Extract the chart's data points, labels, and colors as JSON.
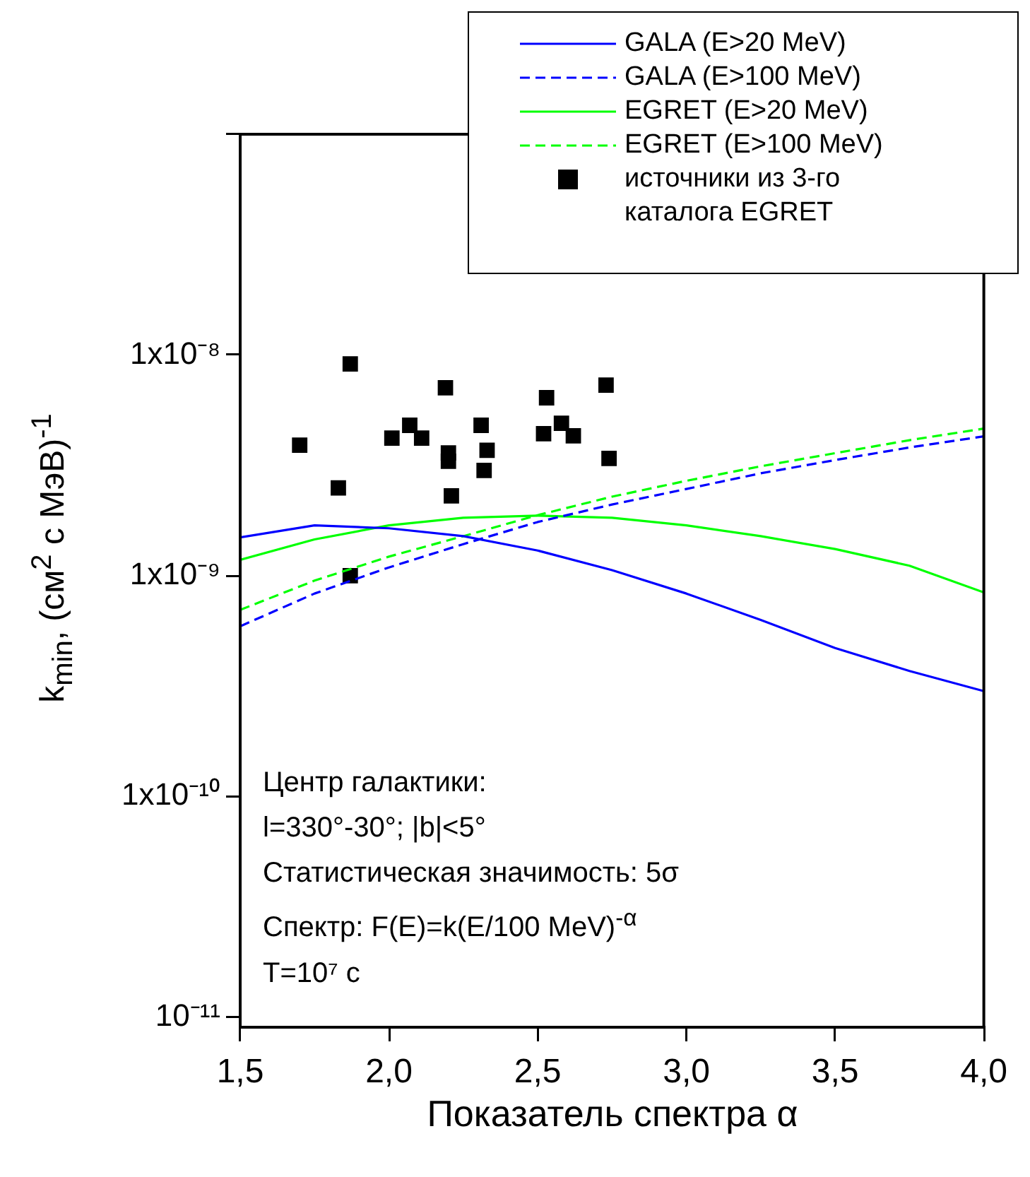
{
  "chart_data": {
    "type": "line",
    "xlabel": "Показатель спектра α",
    "ylabel": "k$_{min}$, (см$^{2}$ с МэВ)$^{-1}$",
    "x": [
      1.5,
      1.75,
      2.0,
      2.25,
      2.5,
      2.75,
      3.0,
      3.25,
      3.5,
      3.75,
      4.0
    ],
    "series": [
      {
        "name": "GALA (E>20 MeV)",
        "color": "#0000ff",
        "line_style": "solid",
        "values": [
          1.49e-09,
          1.69e-09,
          1.64e-09,
          1.51e-09,
          1.3e-09,
          1.06e-09,
          8.3e-10,
          6.3e-10,
          4.7e-10,
          3.7e-10,
          3e-10
        ]
      },
      {
        "name": "GALA (E>100 MeV)",
        "color": "#0000ff",
        "line_style": "dashed",
        "values": [
          5.9e-10,
          8.3e-10,
          1.09e-09,
          1.39e-09,
          1.75e-09,
          2.1e-09,
          2.47e-09,
          2.91e-09,
          3.34e-09,
          3.81e-09,
          4.28e-09
        ]
      },
      {
        "name": "EGRET (E>20 MeV)",
        "color": "#00ff00",
        "line_style": "solid",
        "values": [
          1.18e-09,
          1.46e-09,
          1.69e-09,
          1.83e-09,
          1.87e-09,
          1.83e-09,
          1.69e-09,
          1.51e-09,
          1.32e-09,
          1.11e-09,
          8.4e-10
        ]
      },
      {
        "name": "EGRET (E>100 MeV)",
        "color": "#00ff00",
        "line_style": "dashed",
        "values": [
          7e-10,
          9.5e-10,
          1.22e-09,
          1.51e-09,
          1.88e-09,
          2.28e-09,
          2.69e-09,
          3.13e-09,
          3.59e-09,
          4.11e-09,
          4.64e-09
        ]
      },
      {
        "name": "источники из 3-го каталога EGRET",
        "type": "scatter",
        "marker": "square",
        "color": "#000000",
        "x": [
          1.87,
          1.7,
          1.83,
          2.01,
          2.07,
          2.11,
          2.19,
          2.2,
          2.2,
          2.21,
          2.31,
          2.33,
          2.32,
          2.52,
          2.53,
          2.58,
          2.62,
          2.73,
          2.74,
          1.87
        ],
        "values": [
          9.1e-09,
          3.9e-09,
          2.5e-09,
          4.2e-09,
          4.8e-09,
          4.2e-09,
          7.1e-09,
          3.6e-09,
          3.3e-09,
          2.3e-09,
          4.8e-09,
          3.7e-09,
          3e-09,
          4.4e-09,
          6.4e-09,
          4.9e-09,
          4.3e-09,
          7.3e-09,
          3.4e-09,
          1e-09
        ]
      }
    ],
    "log": "y",
    "grid": false,
    "legend": "top right",
    "marker": "none",
    "xlim": [
      1.5,
      4.0
    ],
    "xticks": [
      {
        "value": 1.5,
        "label": "1,5"
      },
      {
        "value": 2.0,
        "label": "2,0"
      },
      {
        "value": 2.5,
        "label": "2,5"
      },
      {
        "value": 3.0,
        "label": "3,0"
      },
      {
        "value": 3.5,
        "label": "3,5"
      },
      {
        "value": 4.0,
        "label": "4,0"
      }
    ],
    "ylim": [
      9e-12,
      1e-07
    ],
    "yticks": [
      {
        "value": 1e-11,
        "label": "10⁻¹¹"
      },
      {
        "value": 1e-10,
        "label": "1x10⁻¹⁰"
      },
      {
        "value": 1e-09,
        "label": "1x10⁻⁹"
      },
      {
        "value": 1e-08,
        "label": "1x10⁻⁸"
      },
      {
        "value": 1e-07,
        "label": null
      }
    ],
    "annotations": [
      "Центр галактики:",
      "l=330°-30°; |b|<5°",
      "Статистическая значимость: 5σ",
      "Спектр: F(E)=k(E/100 MeV)$^{-α}$",
      "T=10⁷ c"
    ]
  }
}
